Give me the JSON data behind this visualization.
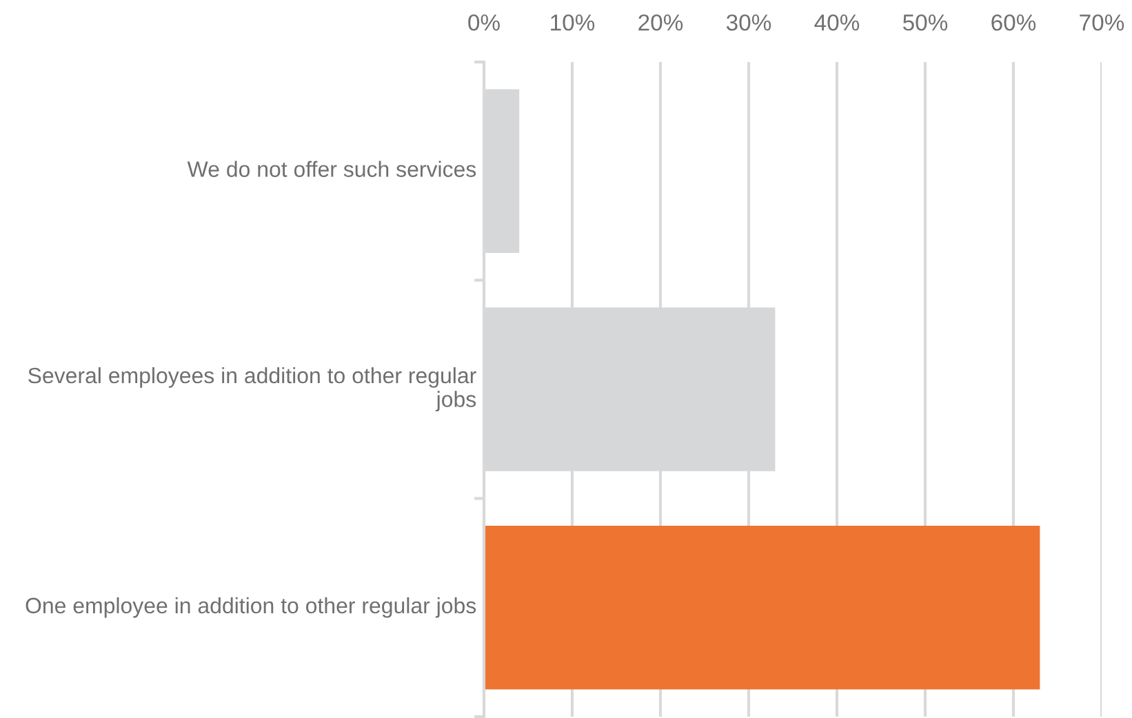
{
  "chart_data": {
    "type": "bar",
    "orientation": "horizontal",
    "categories": [
      "We do not offer such services",
      "Several employees in addition to other regular jobs",
      "One employee in addition to other regular jobs"
    ],
    "values": [
      4,
      33,
      63
    ],
    "colors": [
      "#d6d7d9",
      "#d6d7d9",
      "#ed7431"
    ],
    "xlim": [
      0,
      70
    ],
    "xticks": [
      {
        "value": 0,
        "label": "0%"
      },
      {
        "value": 10,
        "label": "10%"
      },
      {
        "value": 20,
        "label": "20%"
      },
      {
        "value": 30,
        "label": "30%"
      },
      {
        "value": 40,
        "label": "40%"
      },
      {
        "value": 50,
        "label": "50%"
      },
      {
        "value": 60,
        "label": "60%"
      },
      {
        "value": 70,
        "label": "70%"
      }
    ],
    "grid": "x"
  }
}
